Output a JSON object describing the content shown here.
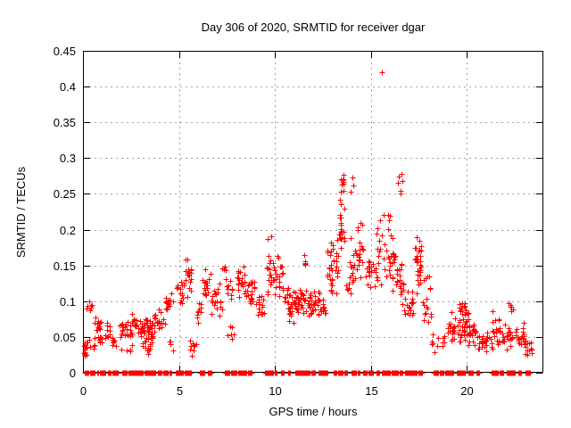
{
  "chart_data": {
    "type": "scatter",
    "title": "Day 306 of 2020, SRMTID for receiver dgar",
    "xlabel": "GPS time / hours",
    "ylabel": "SRMTID / TECUs",
    "xlim": [
      0,
      24
    ],
    "ylim": [
      0,
      0.45
    ],
    "xticks": [
      0,
      5,
      10,
      15,
      20
    ],
    "xtick_labels": [
      "0",
      "5",
      "10",
      "15",
      "20"
    ],
    "yticks": [
      0,
      0.05,
      0.1,
      0.15,
      0.2,
      0.25,
      0.3,
      0.35,
      0.4,
      0.45
    ],
    "ytick_labels": [
      "0",
      "0.05",
      "0.1",
      "0.15",
      "0.2",
      "0.25",
      "0.3",
      "0.35",
      "0.4",
      "0.45"
    ],
    "grid": true,
    "legend": "none",
    "marker": "plus",
    "marker_color": "#ff0000",
    "grid_color": "#a0a0a0",
    "axis_color": "#000000",
    "background_color": "#ffffff",
    "max_point": [
      15.57,
      0.42
    ],
    "extra_points": [
      [
        15.57,
        0.42
      ]
    ],
    "clusters_note": "Each cluster is [hour_start, hour_end, y_min_TECU, y_max_TECU, point_count] summarizing the scatter cloud read from the plot.",
    "clusters": [
      [
        0.03,
        0.25,
        0.02,
        0.05,
        16
      ],
      [
        0.15,
        0.45,
        0.085,
        0.112,
        7
      ],
      [
        0.3,
        0.6,
        0.028,
        0.05,
        6
      ],
      [
        0.55,
        0.95,
        0.055,
        0.085,
        12
      ],
      [
        0.75,
        1.1,
        0.04,
        0.06,
        8
      ],
      [
        1.1,
        1.45,
        0.04,
        0.075,
        10
      ],
      [
        1.5,
        1.8,
        0.03,
        0.055,
        8
      ],
      [
        1.9,
        2.5,
        0.045,
        0.075,
        22
      ],
      [
        2.0,
        2.6,
        0.02,
        0.04,
        5
      ],
      [
        2.5,
        3.0,
        0.05,
        0.085,
        18
      ],
      [
        3.0,
        3.65,
        0.04,
        0.08,
        45
      ],
      [
        3.1,
        3.6,
        0.025,
        0.045,
        10
      ],
      [
        3.7,
        4.3,
        0.055,
        0.09,
        18
      ],
      [
        4.3,
        4.75,
        0.08,
        0.12,
        14
      ],
      [
        4.5,
        4.8,
        0.03,
        0.05,
        4
      ],
      [
        4.9,
        5.3,
        0.085,
        0.135,
        16
      ],
      [
        5.3,
        5.65,
        0.1,
        0.175,
        18
      ],
      [
        5.55,
        5.95,
        0.015,
        0.06,
        10
      ],
      [
        5.9,
        6.2,
        0.06,
        0.1,
        10
      ],
      [
        6.2,
        6.65,
        0.09,
        0.16,
        18
      ],
      [
        6.7,
        7.35,
        0.075,
        0.125,
        20
      ],
      [
        7.25,
        7.45,
        0.135,
        0.155,
        4
      ],
      [
        7.45,
        7.8,
        0.1,
        0.14,
        10
      ],
      [
        7.5,
        7.9,
        0.04,
        0.07,
        6
      ],
      [
        8.05,
        8.45,
        0.1,
        0.155,
        22
      ],
      [
        8.5,
        8.95,
        0.09,
        0.145,
        20
      ],
      [
        9.0,
        9.45,
        0.075,
        0.115,
        16
      ],
      [
        9.55,
        9.95,
        0.1,
        0.17,
        18
      ],
      [
        9.6,
        9.85,
        0.185,
        0.195,
        2
      ],
      [
        10.0,
        10.45,
        0.105,
        0.165,
        20
      ],
      [
        10.5,
        11.25,
        0.065,
        0.125,
        45
      ],
      [
        11.3,
        11.65,
        0.08,
        0.125,
        16
      ],
      [
        11.4,
        11.6,
        0.14,
        0.175,
        5
      ],
      [
        11.7,
        12.15,
        0.075,
        0.115,
        25
      ],
      [
        12.2,
        12.65,
        0.07,
        0.115,
        20
      ],
      [
        12.7,
        13.3,
        0.1,
        0.2,
        35
      ],
      [
        13.3,
        13.65,
        0.15,
        0.245,
        25
      ],
      [
        13.35,
        13.6,
        0.245,
        0.29,
        10
      ],
      [
        13.7,
        14.2,
        0.1,
        0.19,
        20
      ],
      [
        13.95,
        14.1,
        0.25,
        0.275,
        3
      ],
      [
        14.2,
        14.7,
        0.115,
        0.22,
        20
      ],
      [
        14.75,
        15.15,
        0.115,
        0.175,
        16
      ],
      [
        15.2,
        15.6,
        0.1,
        0.23,
        18
      ],
      [
        15.65,
        16.05,
        0.125,
        0.235,
        18
      ],
      [
        16.05,
        16.35,
        0.1,
        0.21,
        14
      ],
      [
        16.35,
        16.7,
        0.095,
        0.165,
        20
      ],
      [
        16.4,
        16.65,
        0.245,
        0.295,
        7
      ],
      [
        16.75,
        17.25,
        0.07,
        0.12,
        18
      ],
      [
        17.3,
        17.65,
        0.1,
        0.19,
        30
      ],
      [
        17.7,
        18.15,
        0.06,
        0.145,
        18
      ],
      [
        18.2,
        18.9,
        0.025,
        0.065,
        12
      ],
      [
        19.0,
        19.65,
        0.03,
        0.09,
        25
      ],
      [
        19.55,
        20.0,
        0.085,
        0.105,
        6
      ],
      [
        19.65,
        20.1,
        0.03,
        0.1,
        30
      ],
      [
        20.1,
        20.65,
        0.03,
        0.07,
        25
      ],
      [
        20.65,
        21.2,
        0.025,
        0.06,
        20
      ],
      [
        21.2,
        21.8,
        0.03,
        0.09,
        22
      ],
      [
        21.85,
        22.45,
        0.03,
        0.07,
        22
      ],
      [
        22.15,
        22.45,
        0.08,
        0.098,
        6
      ],
      [
        22.5,
        23.0,
        0.03,
        0.075,
        20
      ],
      [
        23.0,
        23.4,
        0.02,
        0.05,
        14
      ]
    ],
    "zero_line_intervals_note": "Hour ranges along y=0 where dense runs of zero-valued points form red dashes on the x-axis.",
    "zero_line_intervals": [
      [
        0.08,
        0.3
      ],
      [
        0.38,
        0.62
      ],
      [
        0.72,
        0.82
      ],
      [
        0.9,
        1.18
      ],
      [
        1.28,
        1.47
      ],
      [
        1.52,
        1.82
      ],
      [
        2.05,
        2.25
      ],
      [
        2.38,
        2.68
      ],
      [
        2.72,
        3.12
      ],
      [
        3.18,
        3.52
      ],
      [
        3.58,
        3.78
      ],
      [
        3.88,
        4.12
      ],
      [
        4.18,
        4.42
      ],
      [
        4.48,
        4.6
      ],
      [
        4.82,
        5.02
      ],
      [
        5.08,
        5.22
      ],
      [
        5.32,
        5.47
      ],
      [
        5.52,
        5.62
      ],
      [
        6.08,
        6.32
      ],
      [
        6.5,
        6.72
      ],
      [
        7.38,
        7.62
      ],
      [
        7.72,
        8.02
      ],
      [
        8.08,
        8.28
      ],
      [
        8.32,
        8.52
      ],
      [
        8.6,
        8.82
      ],
      [
        9.48,
        9.92
      ],
      [
        10.0,
        10.12
      ],
      [
        10.32,
        10.48
      ],
      [
        10.68,
        10.82
      ],
      [
        11.08,
        11.42
      ],
      [
        11.5,
        11.82
      ],
      [
        11.9,
        12.12
      ],
      [
        12.28,
        12.78
      ],
      [
        13.08,
        13.22
      ],
      [
        13.32,
        13.52
      ],
      [
        13.6,
        13.78
      ],
      [
        13.98,
        14.22
      ],
      [
        14.3,
        14.42
      ],
      [
        14.58,
        14.78
      ],
      [
        14.88,
        15.12
      ],
      [
        15.28,
        15.47
      ],
      [
        15.58,
        16.02
      ],
      [
        16.08,
        16.42
      ],
      [
        16.5,
        16.67
      ],
      [
        16.78,
        17.12
      ],
      [
        17.17,
        17.42
      ],
      [
        17.5,
        17.67
      ],
      [
        18.28,
        18.52
      ],
      [
        18.6,
        18.77
      ],
      [
        18.88,
        19.32
      ],
      [
        19.48,
        19.92
      ],
      [
        20.08,
        20.32
      ],
      [
        20.48,
        20.67
      ],
      [
        21.28,
        21.62
      ],
      [
        21.7,
        21.92
      ],
      [
        22.08,
        22.52
      ],
      [
        22.68,
        22.87
      ],
      [
        23.08,
        23.32
      ]
    ]
  }
}
